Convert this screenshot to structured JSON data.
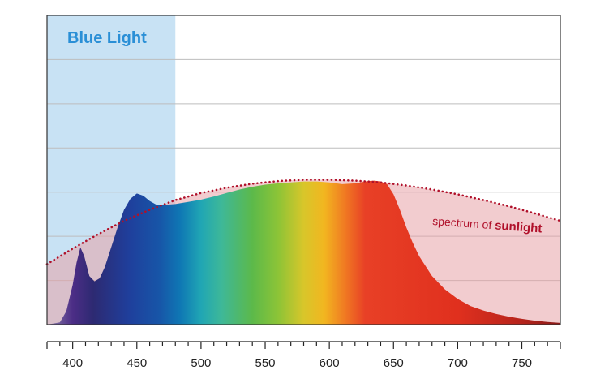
{
  "chart_data": {
    "type": "area",
    "title": "",
    "xlabel": "",
    "ylabel": "",
    "xlim": [
      380,
      780
    ],
    "ylim": [
      0,
      7
    ],
    "grid": true,
    "x_ticks": [
      400,
      450,
      500,
      550,
      600,
      650,
      700,
      750
    ],
    "highlight_band": {
      "label": "Blue Light",
      "x_range": [
        380,
        480
      ],
      "color": "#c8e2f4",
      "label_color": "#2a8fd6"
    },
    "series": [
      {
        "type": "area",
        "fill": "spectral-gradient",
        "x": [
          380,
          390,
          395,
          400,
          403,
          406,
          409,
          413,
          417,
          421,
          425,
          430,
          435,
          440,
          445,
          450,
          455,
          460,
          465,
          470,
          475,
          480,
          490,
          500,
          510,
          520,
          530,
          540,
          550,
          560,
          570,
          580,
          590,
          600,
          610,
          620,
          630,
          635,
          640,
          645,
          650,
          655,
          660,
          665,
          670,
          680,
          690,
          700,
          710,
          720,
          730,
          740,
          750,
          760,
          770,
          780
        ],
        "y": [
          0,
          0.05,
          0.3,
          0.9,
          1.4,
          1.75,
          1.55,
          1.1,
          0.98,
          1.05,
          1.3,
          1.75,
          2.2,
          2.6,
          2.85,
          2.97,
          2.92,
          2.8,
          2.72,
          2.7,
          2.72,
          2.73,
          2.78,
          2.83,
          2.9,
          2.98,
          3.06,
          3.12,
          3.17,
          3.2,
          3.22,
          3.24,
          3.24,
          3.22,
          3.18,
          3.2,
          3.25,
          3.26,
          3.24,
          3.18,
          2.95,
          2.6,
          2.2,
          1.85,
          1.55,
          1.1,
          0.8,
          0.58,
          0.42,
          0.32,
          0.24,
          0.18,
          0.13,
          0.09,
          0.06,
          0.04
        ]
      },
      {
        "name": "spectrum of sunlight",
        "type": "line",
        "style": "dotted",
        "color": "#b0102a",
        "x": [
          380,
          400,
          420,
          440,
          460,
          480,
          500,
          520,
          540,
          560,
          580,
          600,
          620,
          640,
          660,
          680,
          700,
          720,
          740,
          760,
          780
        ],
        "y": [
          1.37,
          1.72,
          2.05,
          2.35,
          2.6,
          2.82,
          2.98,
          3.1,
          3.19,
          3.25,
          3.28,
          3.28,
          3.26,
          3.22,
          3.15,
          3.06,
          2.95,
          2.82,
          2.68,
          2.52,
          2.35
        ]
      }
    ]
  },
  "annotations": {
    "blue_light": "Blue Light",
    "sun_prefix": "spectrum of ",
    "sun_bold": "sunlight"
  }
}
